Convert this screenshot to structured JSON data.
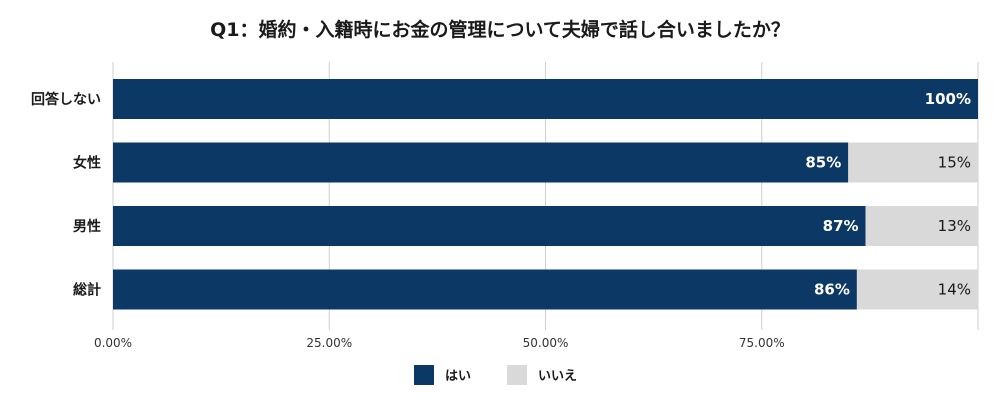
{
  "chart_data": {
    "type": "bar",
    "orientation": "horizontal",
    "stacked": true,
    "title": "Q1：婚約・入籍時にお金の管理について夫婦で話し合いましたか？",
    "categories": [
      "回答しない",
      "女性",
      "男性",
      "総計"
    ],
    "series": [
      {
        "name": "はい",
        "values": [
          100,
          85,
          87,
          86
        ],
        "labels": [
          "100%",
          "85%",
          "87%",
          "86%"
        ],
        "color": "#0b3864"
      },
      {
        "name": "いいえ",
        "values": [
          0,
          15,
          13,
          14
        ],
        "labels": [
          "",
          "15%",
          "13%",
          "14%"
        ],
        "color": "#d9d9d9"
      }
    ],
    "xlim": [
      0,
      100
    ],
    "xticks": [
      0,
      25,
      50,
      75
    ],
    "xtick_labels": [
      "0.00%",
      "25.00%",
      "50.00%",
      "75.00%"
    ],
    "grid": true,
    "legend": "bottom"
  }
}
